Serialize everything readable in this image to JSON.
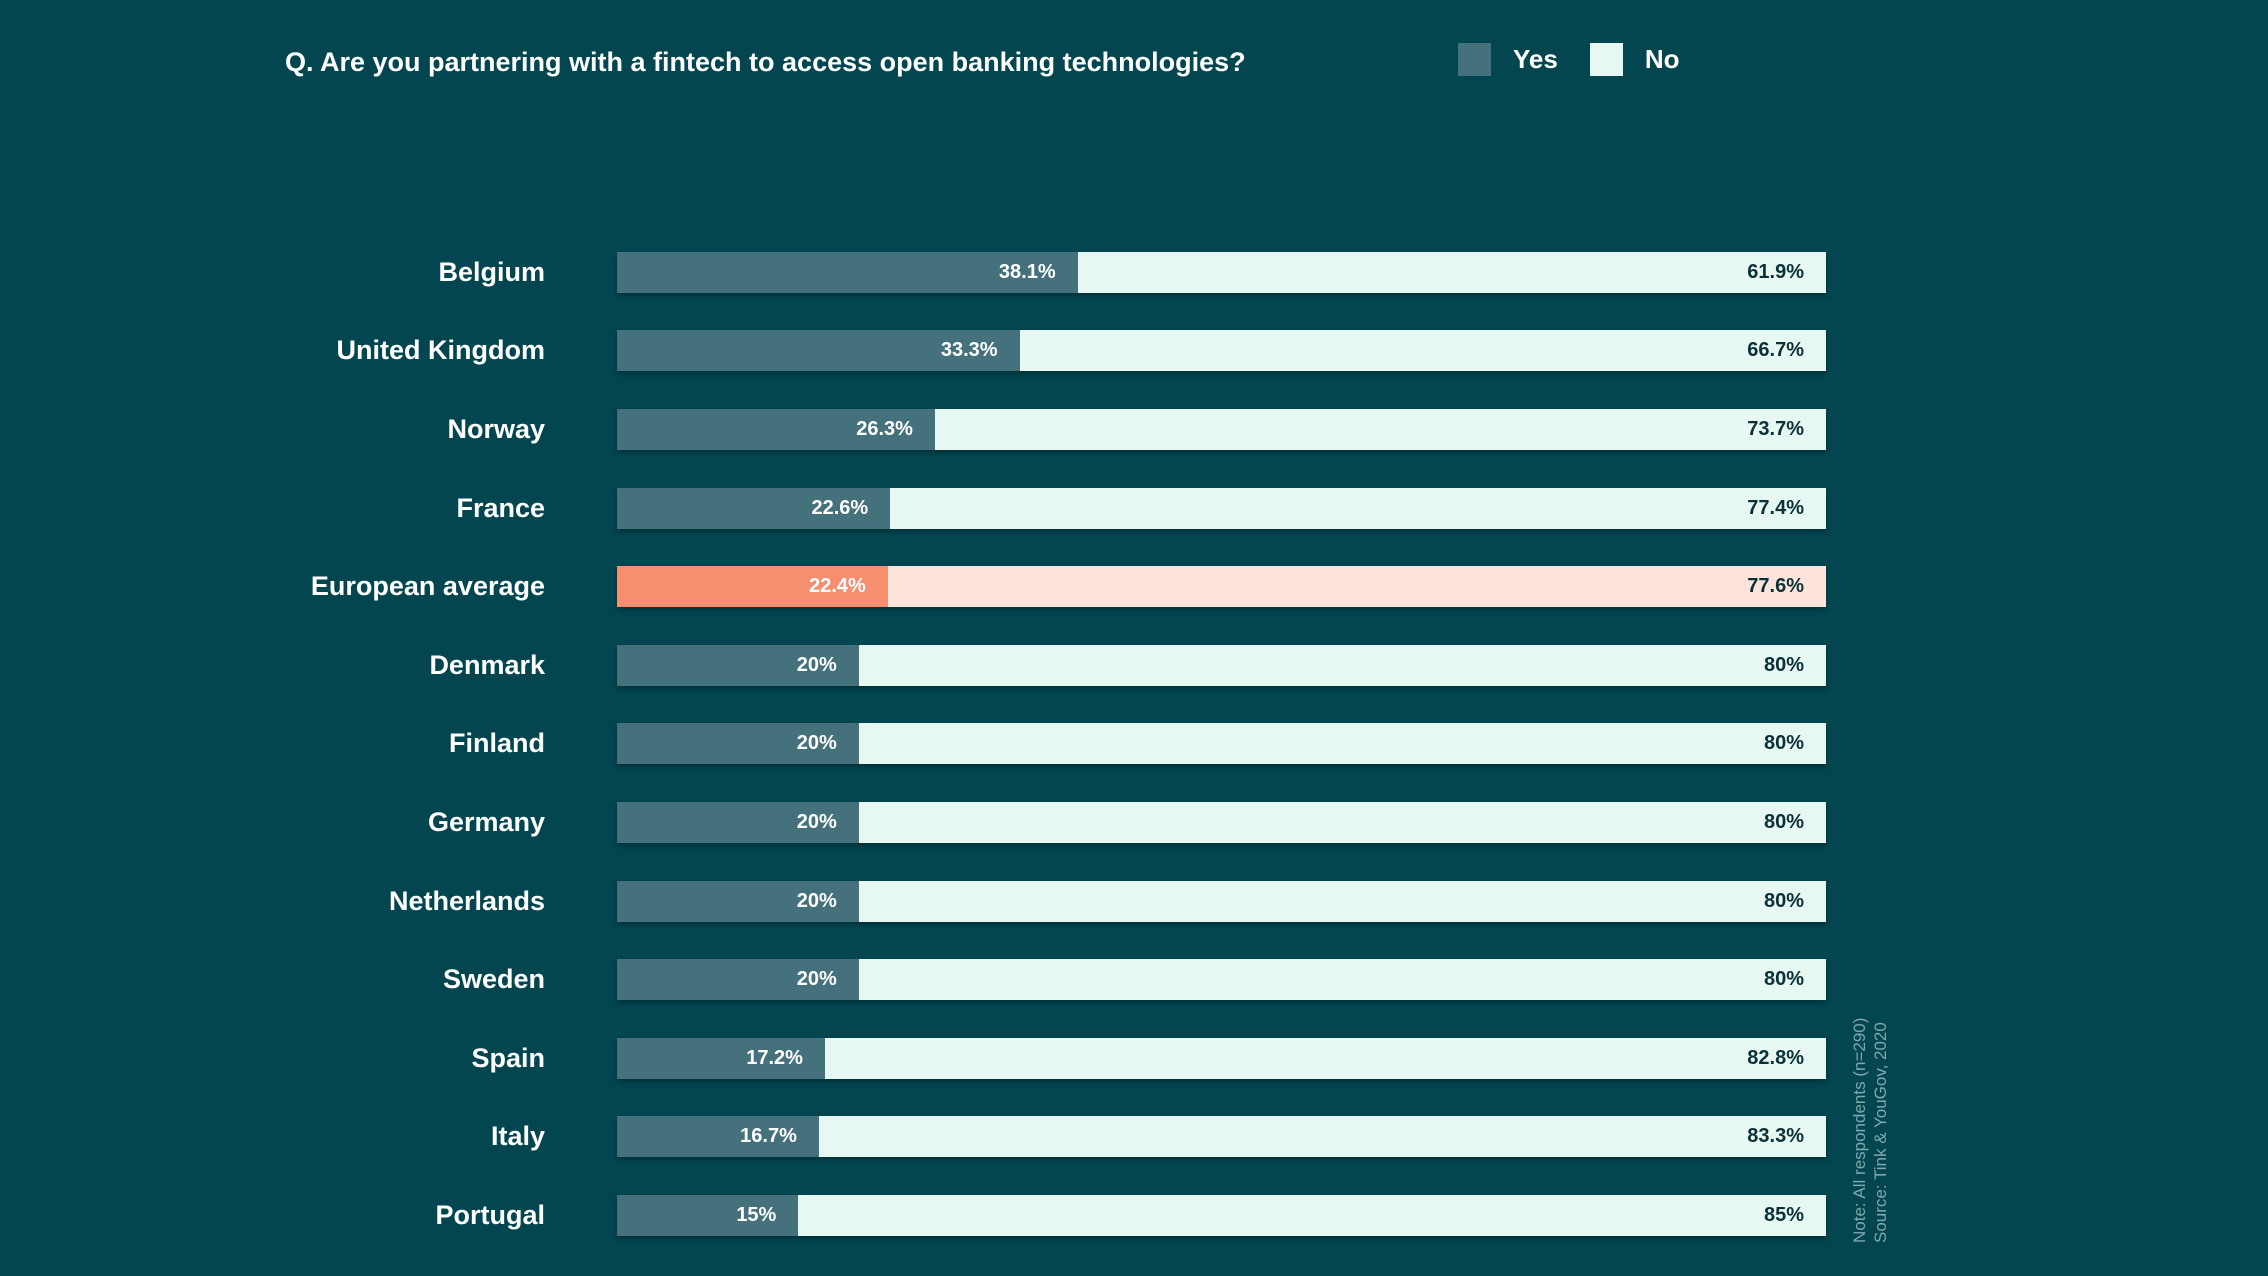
{
  "title": "Q. Are you partnering with a fintech to access open banking technologies?",
  "legend": {
    "yes_label": "Yes",
    "no_label": "No"
  },
  "note": {
    "line1": "Note: All respondents (n=290)",
    "line2": "Source: Tink & YouGov, 2020"
  },
  "colors": {
    "background": "#034650",
    "yes_bar": "#45717d",
    "no_bar": "#e7f7f2",
    "highlight_yes_bar": "#f68f70",
    "highlight_no_bar": "#fce3dc",
    "yes_value_text": "#ffffff",
    "no_value_text": "#0b3138",
    "label_text": "#ffffff",
    "note_text": "#7fa9ad"
  },
  "chart_data": {
    "type": "bar",
    "orientation": "horizontal",
    "stacked": true,
    "unit": "%",
    "title": "Q. Are you partnering with a fintech to access open banking technologies?",
    "legend_entries": [
      "Yes",
      "No"
    ],
    "legend_position": "top-right",
    "xlim": [
      0,
      100
    ],
    "grid": false,
    "categories": [
      "Belgium",
      "United Kingdom",
      "Norway",
      "France",
      "European average",
      "Denmark",
      "Finland",
      "Germany",
      "Netherlands",
      "Sweden",
      "Spain",
      "Italy",
      "Portugal"
    ],
    "series": [
      {
        "name": "Yes",
        "values": [
          38.1,
          33.3,
          26.3,
          22.6,
          22.4,
          20,
          20,
          20,
          20,
          20,
          17.2,
          16.7,
          15
        ]
      },
      {
        "name": "No",
        "values": [
          61.9,
          66.7,
          73.7,
          77.4,
          77.6,
          80,
          80,
          80,
          80,
          80,
          82.8,
          83.3,
          85
        ]
      }
    ],
    "value_labels": {
      "yes": [
        "38.1%",
        "33.3%",
        "26.3%",
        "22.6%",
        "22.4%",
        "20%",
        "20%",
        "20%",
        "20%",
        "20%",
        "17.2%",
        "16.7%",
        "15%"
      ],
      "no": [
        "61.9%",
        "66.7%",
        "73.7%",
        "77.4%",
        "77.6%",
        "80%",
        "80%",
        "80%",
        "80%",
        "80%",
        "82.8%",
        "83.3%",
        "85%"
      ]
    },
    "highlight_category": "European average"
  }
}
